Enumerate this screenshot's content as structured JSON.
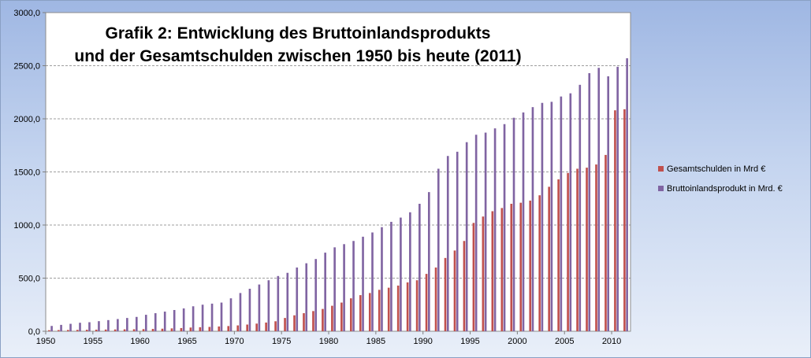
{
  "chart_data": {
    "type": "bar",
    "title_line1": "Grafik 2: Entwicklung des Bruttoinlandsprodukts",
    "title_line2": "und der Gesamtschulden zwischen 1950 bis heute (2011)",
    "xlabel": "",
    "ylabel": "",
    "ylim": [
      0,
      3000
    ],
    "yticks": [
      "0,0",
      "500,0",
      "1000,0",
      "1500,0",
      "2000,0",
      "2500,0",
      "3000,0"
    ],
    "xtick_labels": [
      "1950",
      "1955",
      "1960",
      "1965",
      "1970",
      "1975",
      "1980",
      "1985",
      "1990",
      "1995",
      "2000",
      "2005",
      "2010"
    ],
    "grid": "horizontal dashed",
    "legend_position": "right",
    "categories": [
      1950,
      1951,
      1952,
      1953,
      1954,
      1955,
      1956,
      1957,
      1958,
      1959,
      1960,
      1961,
      1962,
      1963,
      1964,
      1965,
      1966,
      1967,
      1968,
      1969,
      1970,
      1971,
      1972,
      1973,
      1974,
      1975,
      1976,
      1977,
      1978,
      1979,
      1980,
      1981,
      1982,
      1983,
      1984,
      1985,
      1986,
      1987,
      1988,
      1989,
      1990,
      1991,
      1992,
      1993,
      1994,
      1995,
      1996,
      1997,
      1998,
      1999,
      2000,
      2001,
      2002,
      2003,
      2004,
      2005,
      2006,
      2007,
      2008,
      2009,
      2010,
      2011
    ],
    "series": [
      {
        "name": "Gesamtschulden in Mrd €",
        "color": "#c0504d",
        "values": [
          10,
          11,
          12,
          13,
          14,
          15,
          16,
          17,
          18,
          19,
          20,
          22,
          24,
          27,
          30,
          35,
          38,
          41,
          45,
          49,
          55,
          63,
          72,
          82,
          94,
          125,
          150,
          170,
          190,
          210,
          240,
          270,
          310,
          340,
          360,
          390,
          410,
          430,
          460,
          480,
          540,
          600,
          690,
          760,
          850,
          1020,
          1080,
          1130,
          1160,
          1200,
          1210,
          1230,
          1280,
          1360,
          1430,
          1490,
          1530,
          1540,
          1570,
          1660,
          2080,
          2090
        ]
      },
      {
        "name": "Bruttoinlandsprodukt in Mrd. €",
        "color": "#8064a2",
        "values": [
          50,
          60,
          70,
          80,
          85,
          95,
          105,
          115,
          125,
          135,
          155,
          170,
          185,
          200,
          215,
          235,
          250,
          260,
          270,
          310,
          360,
          400,
          440,
          480,
          520,
          550,
          600,
          640,
          680,
          740,
          790,
          820,
          850,
          890,
          930,
          980,
          1030,
          1070,
          1120,
          1200,
          1310,
          1530,
          1650,
          1690,
          1780,
          1850,
          1870,
          1910,
          1950,
          2010,
          2060,
          2110,
          2150,
          2160,
          2210,
          2240,
          2320,
          2430,
          2480,
          2400,
          2490,
          2570
        ]
      }
    ]
  }
}
